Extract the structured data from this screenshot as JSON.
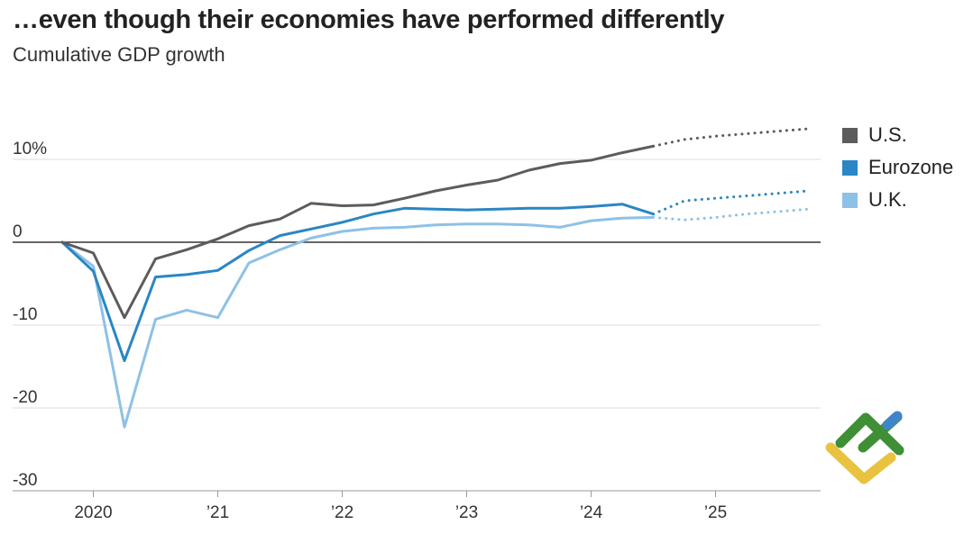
{
  "title": "…even though their economies have performed differently",
  "subtitle": "Cumulative GDP growth",
  "legend": [
    {
      "name": "U.S.",
      "color": "#5c5c5c"
    },
    {
      "name": "Eurozone",
      "color": "#2a86c4"
    },
    {
      "name": "U.K.",
      "color": "#8ec1e6"
    }
  ],
  "chart_data": {
    "type": "line",
    "title": "…even though their economies have performed differently",
    "subtitle": "Cumulative GDP growth",
    "xlabel": "",
    "ylabel": "",
    "ylim": [
      -30,
      15
    ],
    "y_ticks": [
      {
        "value": 10,
        "label": "10%"
      },
      {
        "value": 0,
        "label": "0"
      },
      {
        "value": -10,
        "label": "-10"
      },
      {
        "value": -20,
        "label": "-20"
      },
      {
        "value": -30,
        "label": "-30"
      }
    ],
    "xlim": [
      2019.75,
      2025.75
    ],
    "x_ticks": [
      {
        "value": 2020,
        "label": "2020"
      },
      {
        "value": 2021,
        "label": "’21"
      },
      {
        "value": 2022,
        "label": "’22"
      },
      {
        "value": 2023,
        "label": "’23"
      },
      {
        "value": 2024,
        "label": "’24"
      },
      {
        "value": 2025,
        "label": "’25"
      }
    ],
    "x": [
      2019.75,
      2020.0,
      2020.25,
      2020.5,
      2020.75,
      2021.0,
      2021.25,
      2021.5,
      2021.75,
      2022.0,
      2022.25,
      2022.5,
      2022.75,
      2023.0,
      2023.25,
      2023.5,
      2023.75,
      2024.0,
      2024.25,
      2024.5
    ],
    "forecast_x": [
      2024.5,
      2024.75,
      2025.0,
      2025.25,
      2025.5,
      2025.75
    ],
    "series": [
      {
        "name": "U.S.",
        "color": "#5c5c5c",
        "values": [
          0,
          -1.3,
          -9.1,
          -2.0,
          -0.9,
          0.4,
          2.0,
          2.8,
          4.7,
          4.4,
          4.5,
          5.3,
          6.2,
          6.9,
          7.5,
          8.7,
          9.5,
          9.9,
          10.8,
          11.6
        ],
        "forecast": [
          11.6,
          12.4,
          12.8,
          13.1,
          13.4,
          13.7
        ]
      },
      {
        "name": "Eurozone",
        "color": "#2a86c4",
        "values": [
          0,
          -3.5,
          -14.3,
          -4.2,
          -3.9,
          -3.4,
          -1.0,
          0.8,
          1.6,
          2.4,
          3.4,
          4.1,
          4.0,
          3.9,
          4.0,
          4.1,
          4.1,
          4.3,
          4.6,
          3.4
        ],
        "forecast": [
          3.4,
          5.0,
          5.3,
          5.6,
          5.9,
          6.2
        ]
      },
      {
        "name": "U.K.",
        "color": "#8ec1e6",
        "values": [
          0,
          -2.9,
          -22.3,
          -9.3,
          -8.2,
          -9.1,
          -2.5,
          -0.9,
          0.5,
          1.3,
          1.7,
          1.8,
          2.1,
          2.2,
          2.2,
          2.1,
          1.8,
          2.6,
          2.9,
          3.0
        ],
        "forecast": [
          3.0,
          2.7,
          3.0,
          3.4,
          3.7,
          4.0
        ]
      }
    ]
  }
}
